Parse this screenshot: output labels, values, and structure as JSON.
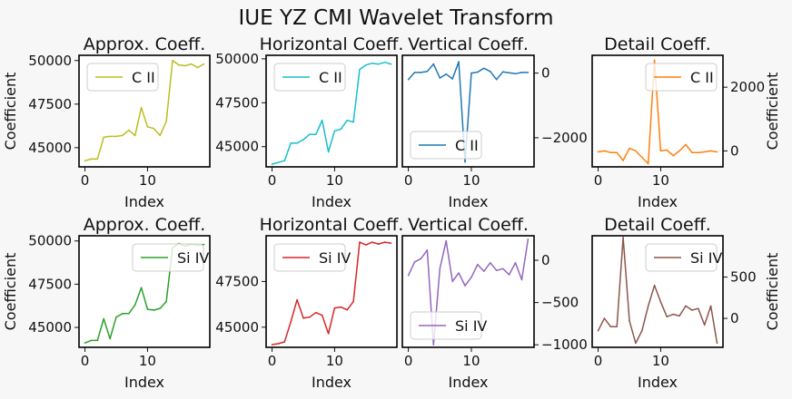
{
  "figure_title": "IUE YZ CMI Wavelet Transform",
  "background": "#f7f7f7",
  "chart_data": [
    {
      "id": "r0c0",
      "type": "line",
      "title": "Approx. Coeff.",
      "xlabel": "Index",
      "ylabel": "Coefficient",
      "ylabel_side": "left",
      "tick_side": "left",
      "legend_loc": "upper-left",
      "series": [
        {
          "name": "C II",
          "color": "#bcbd22",
          "x": [
            0,
            1,
            2,
            3,
            4,
            5,
            6,
            7,
            8,
            9,
            10,
            11,
            12,
            13,
            14,
            15,
            16,
            17,
            18,
            19
          ],
          "values": [
            44250,
            44350,
            44350,
            45600,
            45650,
            45650,
            45700,
            46000,
            45700,
            47300,
            46200,
            46100,
            45700,
            46500,
            50000,
            49750,
            49700,
            49800,
            49600,
            49800
          ]
        }
      ],
      "xlim": [
        -0.95,
        19.95
      ],
      "ylim": [
        43900,
        50300
      ],
      "xticks": [
        0,
        10
      ],
      "yticks": [
        45000,
        47500,
        50000
      ],
      "xtick_labels": [
        "0",
        "10"
      ],
      "ytick_labels": [
        "45000",
        "47500",
        "50000"
      ]
    },
    {
      "id": "r0c1",
      "type": "line",
      "title": "Horizontal Coeff.",
      "xlabel": "Index",
      "ylabel": "",
      "ylabel_side": "none",
      "tick_side": "left",
      "legend_loc": "upper-left",
      "series": [
        {
          "name": "C II",
          "color": "#17becf",
          "x": [
            0,
            1,
            2,
            3,
            4,
            5,
            6,
            7,
            8,
            9,
            10,
            11,
            12,
            13,
            14,
            15,
            16,
            17,
            18,
            19
          ],
          "values": [
            44000,
            44100,
            44200,
            45200,
            45200,
            45400,
            45700,
            45700,
            46500,
            44700,
            45900,
            46000,
            46500,
            46400,
            49400,
            49650,
            49750,
            49700,
            49800,
            49700
          ]
        }
      ],
      "xlim": [
        -0.95,
        19.95
      ],
      "ylim": [
        43850,
        50200
      ],
      "xticks": [
        0,
        10
      ],
      "yticks": [
        45000,
        47500,
        50000
      ],
      "xtick_labels": [
        "0",
        "10"
      ],
      "ytick_labels": [
        "45000",
        "47500",
        "50000"
      ]
    },
    {
      "id": "r0c2",
      "type": "line",
      "title": "Vertical Coeff.",
      "xlabel": "Index",
      "ylabel": "",
      "ylabel_side": "none",
      "tick_side": "right",
      "legend_loc": "lower-left",
      "series": [
        {
          "name": "C II",
          "color": "#1f77b4",
          "x": [
            0,
            1,
            2,
            3,
            4,
            5,
            6,
            7,
            8,
            9,
            10,
            11,
            12,
            13,
            14,
            15,
            16,
            17,
            18,
            19
          ],
          "values": [
            -200,
            20,
            20,
            50,
            280,
            -150,
            -30,
            -180,
            350,
            -2750,
            0,
            30,
            150,
            50,
            -200,
            40,
            10,
            -20,
            20,
            20
          ]
        }
      ],
      "xlim": [
        -0.95,
        19.95
      ],
      "ylim": [
        -2900,
        550
      ],
      "xticks": [
        0,
        10
      ],
      "yticks": [
        -2000,
        0
      ],
      "xtick_labels": [
        "0",
        "10"
      ],
      "ytick_labels": [
        "−2000",
        "0"
      ]
    },
    {
      "id": "r0c3",
      "type": "line",
      "title": "Detail Coeff.",
      "xlabel": "Index",
      "ylabel": "Coefficient",
      "ylabel_side": "right",
      "tick_side": "right",
      "legend_loc": "upper-right",
      "series": [
        {
          "name": "C II",
          "color": "#ff7f0e",
          "x": [
            0,
            1,
            2,
            3,
            4,
            5,
            6,
            7,
            8,
            9,
            10,
            11,
            12,
            13,
            14,
            15,
            16,
            17,
            18,
            19
          ],
          "values": [
            -30,
            0,
            -50,
            -50,
            -300,
            80,
            0,
            -200,
            -400,
            2850,
            0,
            30,
            -150,
            0,
            200,
            -50,
            -50,
            -30,
            0,
            -30
          ]
        }
      ],
      "xlim": [
        -0.95,
        19.95
      ],
      "ylim": [
        -500,
        3000
      ],
      "xticks": [
        0,
        10
      ],
      "yticks": [
        0,
        2000
      ],
      "xtick_labels": [
        "0",
        "10"
      ],
      "ytick_labels": [
        "0",
        "2000"
      ]
    },
    {
      "id": "r1c0",
      "type": "line",
      "title": "Approx. Coeff.",
      "xlabel": "Index",
      "ylabel": "Coefficient",
      "ylabel_side": "left",
      "tick_side": "left",
      "legend_loc": "upper-right",
      "series": [
        {
          "name": "Si IV",
          "color": "#2ca02c",
          "x": [
            0,
            1,
            2,
            3,
            4,
            5,
            6,
            7,
            8,
            9,
            10,
            11,
            12,
            13,
            14,
            15,
            16,
            17,
            18,
            19
          ],
          "values": [
            44100,
            44250,
            44250,
            45500,
            44350,
            45600,
            45800,
            45800,
            46300,
            47300,
            46050,
            46000,
            46100,
            46500,
            49600,
            49850,
            49700,
            49800,
            49750,
            49800
          ]
        }
      ],
      "xlim": [
        -0.95,
        19.95
      ],
      "ylim": [
        43850,
        50300
      ],
      "xticks": [
        0,
        10
      ],
      "yticks": [
        45000,
        47500,
        50000
      ],
      "xtick_labels": [
        "0",
        "10"
      ],
      "ytick_labels": [
        "45000",
        "47500",
        "50000"
      ]
    },
    {
      "id": "r1c1",
      "type": "line",
      "title": "Horizontal Coeff.",
      "xlabel": "Index",
      "ylabel": "",
      "ylabel_side": "none",
      "tick_side": "left",
      "legend_loc": "upper-left",
      "series": [
        {
          "name": "Si IV",
          "color": "#d62728",
          "x": [
            0,
            1,
            2,
            3,
            4,
            5,
            6,
            7,
            8,
            9,
            10,
            11,
            12,
            13,
            14,
            15,
            16,
            17,
            18,
            19
          ],
          "values": [
            44050,
            44100,
            44200,
            45300,
            46500,
            45500,
            45550,
            45800,
            45650,
            44650,
            46050,
            46100,
            45950,
            46400,
            49650,
            49500,
            49650,
            49550,
            49650,
            49600
          ]
        }
      ],
      "xlim": [
        -0.95,
        19.95
      ],
      "ylim": [
        43900,
        50000
      ],
      "xticks": [
        0,
        10
      ],
      "yticks": [
        45000,
        47500
      ],
      "xtick_labels": [
        "0",
        "10"
      ],
      "ytick_labels": [
        "45000",
        "47500"
      ]
    },
    {
      "id": "r1c2",
      "type": "line",
      "title": "Vertical Coeff.",
      "xlabel": "Index",
      "ylabel": "",
      "ylabel_side": "none",
      "tick_side": "right",
      "legend_loc": "lower-left",
      "series": [
        {
          "name": "Si IV",
          "color": "#9467bd",
          "x": [
            0,
            1,
            2,
            3,
            4,
            5,
            6,
            7,
            8,
            9,
            10,
            11,
            12,
            13,
            14,
            15,
            16,
            17,
            18,
            19
          ],
          "values": [
            -180,
            -20,
            20,
            120,
            -1000,
            -100,
            230,
            -250,
            -150,
            -300,
            -200,
            -50,
            -130,
            -30,
            -120,
            -100,
            -170,
            -30,
            -230,
            250
          ]
        }
      ],
      "xlim": [
        -0.95,
        19.95
      ],
      "ylim": [
        -1030,
        290
      ],
      "xticks": [
        0,
        10
      ],
      "yticks": [
        -1000,
        -500,
        0
      ],
      "xtick_labels": [
        "0",
        "10"
      ],
      "ytick_labels": [
        "−1000",
        "−500",
        "0"
      ]
    },
    {
      "id": "r1c3",
      "type": "line",
      "title": "Detail Coeff.",
      "xlabel": "Index",
      "ylabel": "Coefficient",
      "ylabel_side": "right",
      "tick_side": "right",
      "legend_loc": "upper-right",
      "series": [
        {
          "name": "Si IV",
          "color": "#8c564b",
          "x": [
            0,
            1,
            2,
            3,
            4,
            5,
            6,
            7,
            8,
            9,
            10,
            11,
            12,
            13,
            14,
            15,
            16,
            17,
            18,
            19
          ],
          "values": [
            -150,
            0,
            -100,
            -100,
            980,
            -30,
            -300,
            -150,
            150,
            400,
            200,
            20,
            50,
            30,
            150,
            100,
            120,
            -80,
            150,
            -300
          ]
        }
      ],
      "xlim": [
        -0.95,
        19.95
      ],
      "ylim": [
        -350,
        1000
      ],
      "xticks": [
        0,
        10
      ],
      "yticks": [
        0,
        500
      ],
      "xtick_labels": [
        "0",
        "10"
      ],
      "ytick_labels": [
        "0",
        "500"
      ]
    }
  ]
}
